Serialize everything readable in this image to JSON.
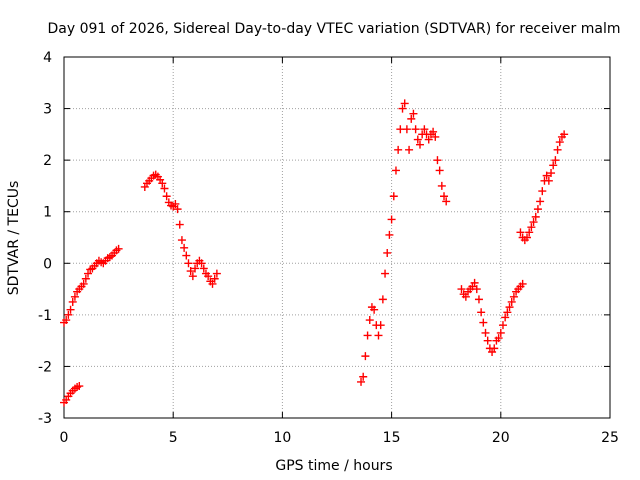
{
  "chart_data": {
    "type": "scatter",
    "title": "Day 091 of 2026, Sidereal Day-to-day VTEC variation (SDTVAR) for receiver malm",
    "xlabel": "GPS time / hours",
    "ylabel": "SDTVAR / TECUs",
    "xlim": [
      0,
      25
    ],
    "ylim": [
      -3,
      4
    ],
    "xticks": [
      0,
      5,
      10,
      15,
      20,
      25
    ],
    "yticks": [
      -3,
      -2,
      -1,
      0,
      1,
      2,
      3,
      4
    ],
    "grid": true,
    "marker": "+",
    "color": "#ff0000",
    "segments": [
      {
        "x": [
          0.0,
          0.1,
          0.2,
          0.3,
          0.4,
          0.5,
          0.6,
          0.7
        ],
        "y": [
          -2.7,
          -2.65,
          -2.58,
          -2.52,
          -2.47,
          -2.43,
          -2.4,
          -2.38
        ]
      },
      {
        "x": [
          0.0,
          0.1,
          0.2,
          0.3,
          0.4,
          0.5,
          0.6,
          0.7,
          0.8,
          0.9,
          1.0,
          1.1,
          1.2,
          1.3,
          1.4,
          1.5,
          1.6,
          1.7,
          1.8,
          1.9,
          2.0,
          2.1,
          2.2,
          2.3,
          2.4,
          2.5
        ],
        "y": [
          -1.15,
          -1.1,
          -1.0,
          -0.9,
          -0.75,
          -0.65,
          -0.55,
          -0.5,
          -0.45,
          -0.4,
          -0.3,
          -0.2,
          -0.12,
          -0.1,
          -0.05,
          0.0,
          0.05,
          0.02,
          0.0,
          0.05,
          0.1,
          0.12,
          0.15,
          0.2,
          0.25,
          0.28
        ]
      },
      {
        "x": [
          3.7,
          3.8,
          3.9,
          4.0,
          4.1,
          4.2,
          4.3,
          4.4,
          4.5,
          4.6,
          4.7,
          4.8,
          4.9,
          5.0,
          5.1,
          5.2,
          5.3,
          5.4,
          5.5,
          5.6,
          5.7,
          5.8,
          5.9,
          6.0,
          6.1,
          6.2,
          6.3,
          6.4,
          6.5,
          6.6,
          6.7,
          6.8,
          6.9,
          7.0
        ],
        "y": [
          1.48,
          1.55,
          1.6,
          1.65,
          1.7,
          1.72,
          1.68,
          1.62,
          1.55,
          1.45,
          1.3,
          1.18,
          1.12,
          1.1,
          1.15,
          1.05,
          0.75,
          0.45,
          0.3,
          0.15,
          0.0,
          -0.15,
          -0.25,
          -0.1,
          0.0,
          0.05,
          0.0,
          -0.1,
          -0.2,
          -0.25,
          -0.35,
          -0.4,
          -0.3,
          -0.2
        ]
      },
      {
        "x": [
          13.6,
          13.7,
          13.8,
          13.9,
          14.0,
          14.1,
          14.2,
          14.3,
          14.4,
          14.5,
          14.6,
          14.7,
          14.8,
          14.9,
          15.0,
          15.1,
          15.2,
          15.3,
          15.4,
          15.5,
          15.6,
          15.7,
          15.8,
          15.9,
          16.0,
          16.1,
          16.2,
          16.3,
          16.4,
          16.5,
          16.6,
          16.7,
          16.8,
          16.9,
          17.0,
          17.1,
          17.2,
          17.3,
          17.4,
          17.5
        ],
        "y": [
          -2.3,
          -2.2,
          -1.8,
          -1.4,
          -1.1,
          -0.85,
          -0.9,
          -1.2,
          -1.4,
          -1.2,
          -0.7,
          -0.2,
          0.2,
          0.55,
          0.85,
          1.3,
          1.8,
          2.2,
          2.6,
          3.0,
          3.1,
          2.6,
          2.2,
          2.8,
          2.9,
          2.6,
          2.4,
          2.3,
          2.5,
          2.6,
          2.5,
          2.4,
          2.5,
          2.55,
          2.45,
          2.0,
          1.8,
          1.5,
          1.3,
          1.2
        ]
      },
      {
        "x": [
          18.2,
          18.3,
          18.4,
          18.5,
          18.6,
          18.7,
          18.8,
          18.9,
          19.0,
          19.1,
          19.2,
          19.3,
          19.4,
          19.5,
          19.6,
          19.7,
          19.8,
          19.9,
          20.0,
          20.1,
          20.2,
          20.3,
          20.4,
          20.5,
          20.6,
          20.7,
          20.8,
          20.9,
          21.0
        ],
        "y": [
          -0.5,
          -0.6,
          -0.65,
          -0.55,
          -0.5,
          -0.45,
          -0.38,
          -0.5,
          -0.7,
          -0.95,
          -1.15,
          -1.35,
          -1.5,
          -1.65,
          -1.72,
          -1.65,
          -1.5,
          -1.45,
          -1.35,
          -1.2,
          -1.05,
          -0.95,
          -0.85,
          -0.75,
          -0.65,
          -0.55,
          -0.5,
          -0.45,
          -0.4
        ]
      },
      {
        "x": [
          20.9,
          21.0,
          21.1,
          21.2,
          21.3,
          21.4,
          21.5,
          21.6,
          21.7,
          21.8,
          21.9,
          22.0,
          22.1,
          22.2,
          22.3,
          22.4,
          22.5,
          22.6,
          22.7,
          22.8,
          22.9
        ],
        "y": [
          0.6,
          0.5,
          0.45,
          0.5,
          0.6,
          0.7,
          0.8,
          0.9,
          1.05,
          1.2,
          1.4,
          1.6,
          1.7,
          1.6,
          1.75,
          1.9,
          2.0,
          2.2,
          2.35,
          2.45,
          2.5
        ]
      }
    ]
  }
}
